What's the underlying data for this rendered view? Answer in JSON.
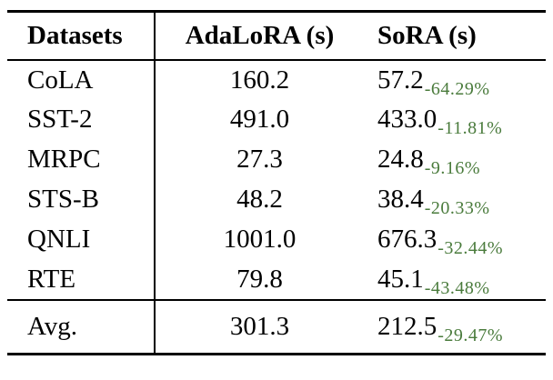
{
  "colors": {
    "text": "#000000",
    "delta_green": "#4a7b3c",
    "rule": "#000000",
    "background": "#ffffff"
  },
  "table": {
    "headers": [
      "Datasets",
      "AdaLoRA (s)",
      "SoRA (s)"
    ],
    "rows": [
      {
        "dataset": "CoLA",
        "adalora": "160.2",
        "sora": "57.2",
        "delta": "-64.29%"
      },
      {
        "dataset": "SST-2",
        "adalora": "491.0",
        "sora": "433.0",
        "delta": "-11.81%"
      },
      {
        "dataset": "MRPC",
        "adalora": "27.3",
        "sora": "24.8",
        "delta": "-9.16%"
      },
      {
        "dataset": "STS-B",
        "adalora": "48.2",
        "sora": "38.4",
        "delta": "-20.33%"
      },
      {
        "dataset": "QNLI",
        "adalora": "1001.0",
        "sora": "676.3",
        "delta": "-32.44%"
      },
      {
        "dataset": "RTE",
        "adalora": "79.8",
        "sora": "45.1",
        "delta": "-43.48%"
      }
    ],
    "footer": {
      "dataset": "Avg.",
      "adalora": "301.3",
      "sora": "212.5",
      "delta": "-29.47%"
    }
  }
}
